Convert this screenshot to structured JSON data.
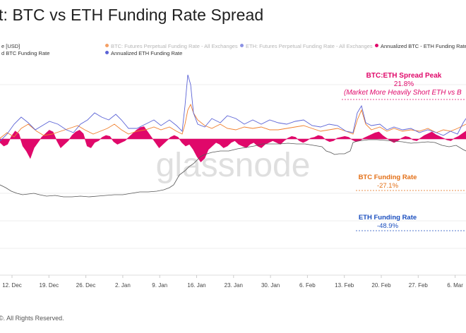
{
  "header": {
    "title": "t: BTC vs ETH Funding Rate Spread"
  },
  "legend": {
    "price": "e [USD]",
    "btc_futures": "BTC: Futures Perpetual Funding Rate - All Exchanges",
    "eth_futures": "ETH: Futures Perpetual Funding Rate - All Exchanges",
    "spread": "Annualized BTC - ETH Funding Rate S",
    "btc_annualized": "d BTC Funding Rate",
    "eth_annualized": "Annualized ETH Funding Rate"
  },
  "watermark": "glassnode",
  "footer": {
    "copyright": "©. All Rights Reserved."
  },
  "colors": {
    "btc": "#f07f2c",
    "eth": "#5b63d6",
    "spread": "#e0086a",
    "price": "#555555",
    "eth_label": "#1b4fbf",
    "btc_label": "#e36f16",
    "peak_label": "#e0086a"
  },
  "chart_data": {
    "type": "line",
    "x_ticks": [
      "12. Dec",
      "19. Dec",
      "26. Dec",
      "2. Jan",
      "9. Jan",
      "16. Jan",
      "23. Jan",
      "30. Jan",
      "6. Feb",
      "13. Feb",
      "20. Feb",
      "27. Feb",
      "6. Mar"
    ],
    "annotations": {
      "peak_title": "BTC:ETH Spread Peak",
      "peak_value": "21.8%",
      "peak_note": "(Market More Heavily Short ETH vs B",
      "btc_title": "BTC Funding Rate",
      "btc_value": "-27.1%",
      "eth_title": "ETH Funding Rate",
      "eth_value": "-48.9%"
    },
    "series": [
      {
        "name": "Annualized BTC - ETH Funding Rate S",
        "values": [
          -4,
          -8,
          -6,
          3,
          9,
          6,
          -8,
          -14,
          -22,
          -10,
          -4,
          2,
          6,
          10,
          8,
          -2,
          -10,
          -6,
          -2,
          4,
          8,
          10,
          6,
          -8,
          -10,
          -4,
          -2,
          2,
          4,
          3,
          -3,
          -6,
          -4,
          -2,
          2,
          6,
          10,
          13,
          14,
          8,
          2,
          -4,
          -10,
          -6,
          -2,
          2,
          4,
          2,
          -4,
          -8,
          -6,
          -12,
          -20,
          -26,
          -22,
          -12,
          -8,
          -4,
          -6,
          -10,
          -8,
          -4,
          -2,
          -6,
          -8,
          -10,
          -6,
          -4,
          -8,
          -10,
          -6,
          -4,
          -2,
          -4,
          -6,
          -2,
          1,
          3,
          2,
          -2,
          -4,
          -2,
          1,
          2,
          4,
          3,
          -1,
          -3,
          -2,
          1,
          2,
          3,
          2,
          -1,
          -3,
          -2,
          1,
          3,
          5,
          7,
          8,
          4,
          1,
          -2,
          -4,
          -2,
          1,
          3,
          2,
          -1,
          -2,
          1,
          4,
          6,
          8,
          5,
          3,
          1,
          -1,
          -2,
          1,
          3,
          6,
          9
        ]
      }
    ]
  }
}
